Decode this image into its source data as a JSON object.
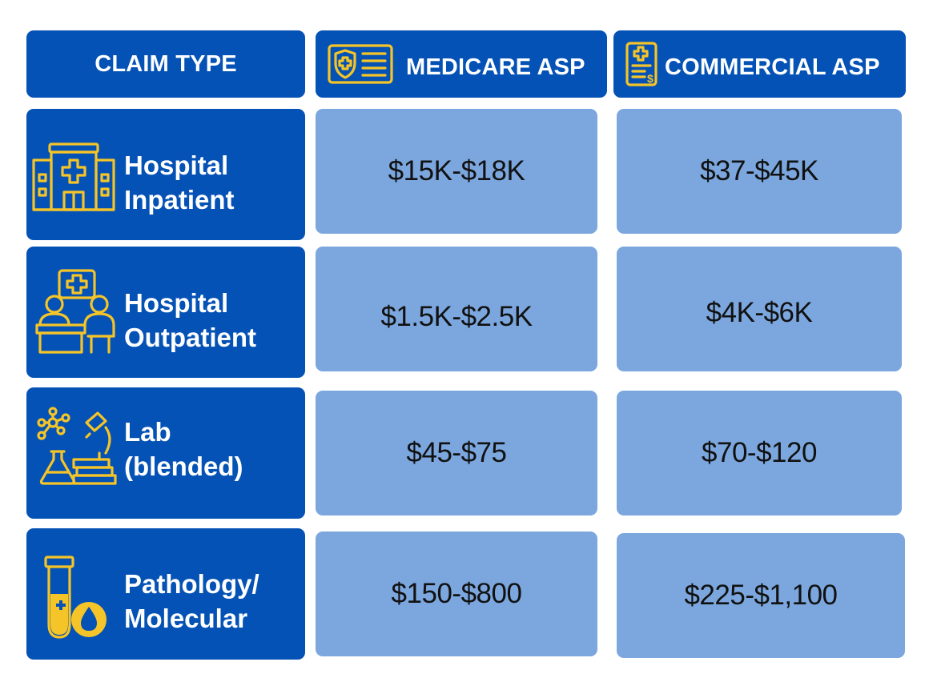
{
  "header": {
    "claim_type": "CLAIM TYPE",
    "medicare": "MEDICARE ASP",
    "commercial": "COMMERCIAL ASP"
  },
  "rows": [
    {
      "label_line1": "Hospital",
      "label_line2": "Inpatient",
      "icon": "hospital-building-icon",
      "medicare": "$15K-$18K",
      "commercial": "$37-$45K"
    },
    {
      "label_line1": "Hospital",
      "label_line2": "Outpatient",
      "icon": "doctor-consultation-icon",
      "medicare": "$1.5K-$2.5K",
      "commercial": "$4K-$6K"
    },
    {
      "label_line1": "Lab",
      "label_line2": "(blended)",
      "icon": "lab-microscope-icon",
      "medicare": "$45-$75",
      "commercial": "$70-$120"
    },
    {
      "label_line1": "Pathology/",
      "label_line2": "Molecular",
      "icon": "test-tube-drop-icon",
      "medicare": "$150-$800",
      "commercial": "$225-$1,100"
    }
  ],
  "colors": {
    "header_bg": "#0452b5",
    "value_bg": "#7ba7de",
    "icon_accent": "#f5c428",
    "header_text": "#ffffff",
    "value_text": "#111111"
  }
}
